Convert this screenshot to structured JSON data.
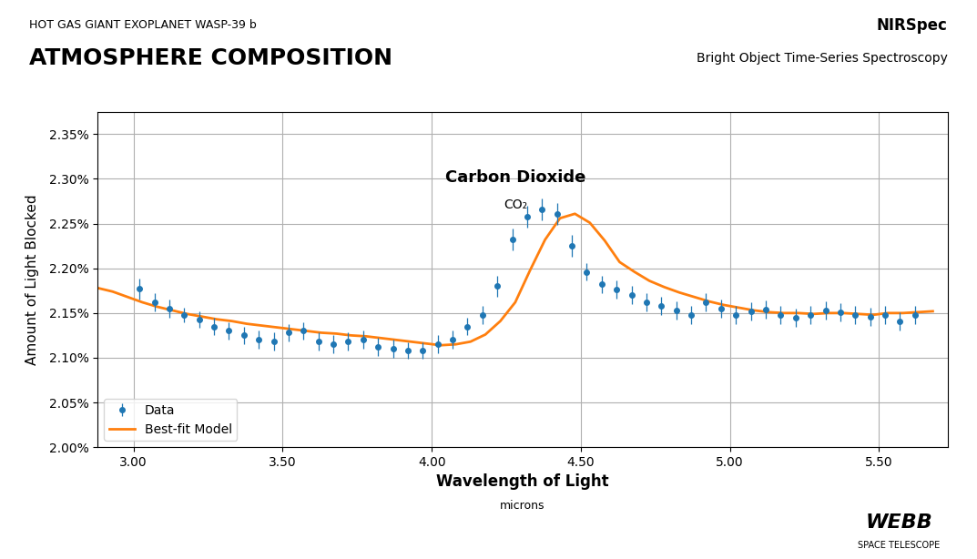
{
  "chart_data": {
    "type": "line",
    "title": "ATMOSPHERE COMPOSITION",
    "subtitle": "HOT GAS GIANT EXOPLANET WASP-39 b",
    "instrument": "NIRSpec",
    "instrument_description": "Bright Object Time-Series Spectroscopy",
    "credit": [
      "WEBB",
      "SPACE TELESCOPE"
    ],
    "x_label": "Wavelength of Light",
    "x_unit": "microns",
    "y_label": "Amount of Light Blocked",
    "annotations": [
      {
        "text": "Carbon Dioxide",
        "x": 4.28,
        "y": 2.292
      },
      {
        "text": "CO₂",
        "x": 4.28,
        "y": 2.278
      }
    ],
    "xlim": [
      2.88,
      5.73
    ],
    "ylim": [
      2.0,
      2.375
    ],
    "xticks": [
      {
        "value": 3.0,
        "label": "3.00"
      },
      {
        "value": 3.5,
        "label": "3.50"
      },
      {
        "value": 4.0,
        "label": "4.00"
      },
      {
        "value": 4.5,
        "label": "4.50"
      },
      {
        "value": 5.0,
        "label": "5.00"
      },
      {
        "value": 5.5,
        "label": "5.50"
      }
    ],
    "yticks": [
      {
        "value": 2.0,
        "label": "2.00%"
      },
      {
        "value": 2.05,
        "label": "2.05%"
      },
      {
        "value": 2.1,
        "label": "2.10%"
      },
      {
        "value": 2.15,
        "label": "2.15%"
      },
      {
        "value": 2.2,
        "label": "2.20%"
      },
      {
        "value": 2.25,
        "label": "2.25%"
      },
      {
        "value": 2.3,
        "label": "2.30%"
      },
      {
        "value": 2.35,
        "label": "2.35%"
      }
    ],
    "grid": true,
    "legend": "lower left",
    "series": [
      {
        "name": "Data",
        "type": "scatter",
        "marker": "o",
        "x": [
          3.02,
          3.07,
          3.12,
          3.17,
          3.22,
          3.27,
          3.32,
          3.37,
          3.42,
          3.47,
          3.52,
          3.57,
          3.62,
          3.67,
          3.72,
          3.77,
          3.82,
          3.87,
          3.92,
          3.97,
          4.02,
          4.07,
          4.12,
          4.17,
          4.22,
          4.27,
          4.32,
          4.37,
          4.42,
          4.47,
          4.52,
          4.57,
          4.62,
          4.67,
          4.72,
          4.77,
          4.82,
          4.87,
          4.92,
          4.97,
          5.02,
          5.07,
          5.12,
          5.17,
          5.22,
          5.27,
          5.32,
          5.37,
          5.42,
          5.47,
          5.52,
          5.57,
          5.62
        ],
        "values": [
          2.177,
          2.162,
          2.155,
          2.148,
          2.143,
          2.135,
          2.13,
          2.125,
          2.12,
          2.118,
          2.128,
          2.13,
          2.118,
          2.115,
          2.118,
          2.12,
          2.112,
          2.11,
          2.108,
          2.108,
          2.115,
          2.12,
          2.135,
          2.148,
          2.18,
          2.232,
          2.258,
          2.266,
          2.261,
          2.225,
          2.196,
          2.182,
          2.176,
          2.17,
          2.162,
          2.158,
          2.153,
          2.148,
          2.162,
          2.155,
          2.148,
          2.152,
          2.154,
          2.148,
          2.145,
          2.148,
          2.153,
          2.151,
          2.148,
          2.146,
          2.148,
          2.141,
          2.148
        ],
        "errors": [
          0.012,
          0.01,
          0.01,
          0.008,
          0.009,
          0.01,
          0.01,
          0.01,
          0.01,
          0.01,
          0.01,
          0.01,
          0.01,
          0.01,
          0.01,
          0.01,
          0.01,
          0.01,
          0.009,
          0.009,
          0.01,
          0.01,
          0.01,
          0.01,
          0.012,
          0.012,
          0.012,
          0.012,
          0.012,
          0.012,
          0.01,
          0.01,
          0.01,
          0.01,
          0.01,
          0.01,
          0.01,
          0.01,
          0.01,
          0.01,
          0.01,
          0.01,
          0.01,
          0.01,
          0.01,
          0.01,
          0.01,
          0.01,
          0.01,
          0.01,
          0.01,
          0.01,
          0.01
        ]
      },
      {
        "name": "Best-fit Model",
        "type": "line",
        "line_style": "solid",
        "x": [
          2.88,
          2.93,
          2.98,
          3.03,
          3.08,
          3.13,
          3.18,
          3.23,
          3.28,
          3.33,
          3.38,
          3.43,
          3.48,
          3.53,
          3.58,
          3.63,
          3.68,
          3.73,
          3.78,
          3.83,
          3.88,
          3.93,
          3.98,
          4.03,
          4.08,
          4.13,
          4.18,
          4.23,
          4.28,
          4.33,
          4.38,
          4.43,
          4.48,
          4.53,
          4.58,
          4.63,
          4.68,
          4.73,
          4.78,
          4.83,
          4.88,
          4.93,
          4.98,
          5.03,
          5.08,
          5.13,
          5.18,
          5.23,
          5.28,
          5.33,
          5.38,
          5.43,
          5.48,
          5.53,
          5.58,
          5.63,
          5.68
        ],
        "values": [
          2.178,
          2.174,
          2.168,
          2.162,
          2.157,
          2.153,
          2.149,
          2.146,
          2.143,
          2.141,
          2.138,
          2.136,
          2.134,
          2.132,
          2.13,
          2.128,
          2.127,
          2.125,
          2.124,
          2.122,
          2.12,
          2.118,
          2.116,
          2.114,
          2.115,
          2.118,
          2.126,
          2.141,
          2.162,
          2.198,
          2.232,
          2.256,
          2.261,
          2.251,
          2.231,
          2.207,
          2.196,
          2.186,
          2.179,
          2.173,
          2.168,
          2.163,
          2.159,
          2.156,
          2.153,
          2.151,
          2.15,
          2.15,
          2.149,
          2.15,
          2.15,
          2.149,
          2.148,
          2.15,
          2.15,
          2.151,
          2.152
        ]
      }
    ]
  }
}
